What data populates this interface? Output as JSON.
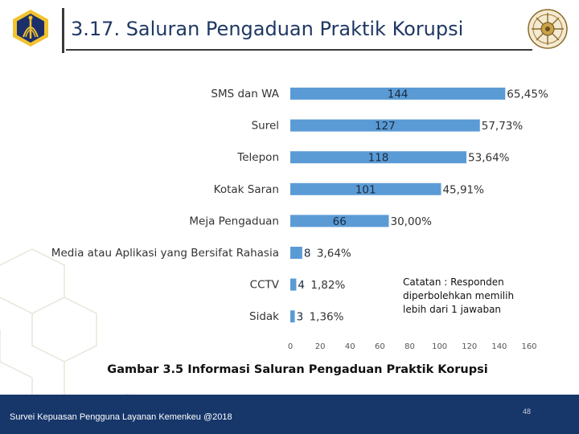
{
  "header": {
    "title": "3.17. Saluran Pengaduan Praktik Korupsi"
  },
  "note": "Catatan : Responden diperbolehkan memilih lebih dari 1 jawaban",
  "caption": "Gambar 3.5 Informasi Saluran Pengaduan Praktik Korupsi",
  "footer": {
    "text": "Survei Kepuasan Pengguna Layanan Kemenkeu @2018",
    "page": "48"
  },
  "colors": {
    "bar": "#5b9bd5",
    "footer": "#17376b",
    "title": "#1f3864",
    "logo_gold": "#f2c230",
    "logo_navy": "#1c2f6b"
  },
  "chart_data": {
    "type": "bar",
    "orientation": "horizontal",
    "categories": [
      "SMS dan WA",
      "Surel",
      "Telepon",
      "Kotak Saran",
      "Meja Pengaduan",
      "Media  atau Aplikasi yang Bersifat Rahasia",
      "CCTV",
      "Sidak"
    ],
    "values": [
      144,
      127,
      118,
      101,
      66,
      8,
      4,
      3
    ],
    "value_labels": [
      "144",
      "127",
      "118",
      "101",
      "66",
      "8",
      "4",
      "3"
    ],
    "percent_labels": [
      "65,45%",
      "57,73%",
      "53,64%",
      "45,91%",
      "30,00%",
      "3,64%",
      "1,82%",
      "1,36%"
    ],
    "xlim": [
      0,
      160
    ],
    "x_ticks": [
      "0",
      "20",
      "40",
      "60",
      "80",
      "100",
      "120",
      "140",
      "160"
    ],
    "grid": false,
    "legend": "none"
  }
}
